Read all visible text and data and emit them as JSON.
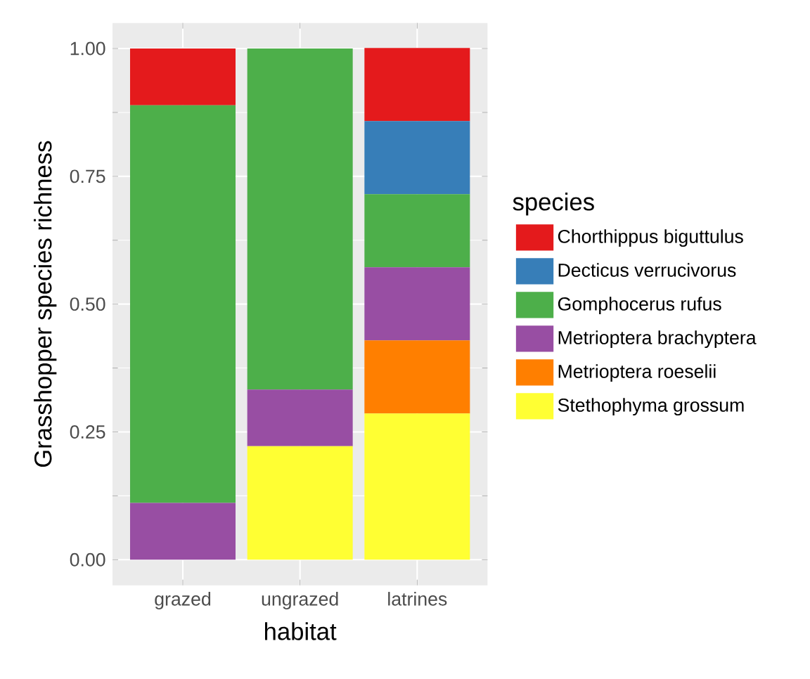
{
  "chart_data": {
    "type": "bar",
    "stacked": true,
    "xlabel": "habitat",
    "ylabel": "Grasshopper species richness",
    "legend_title": "species",
    "legend": "right",
    "grid": true,
    "categories": [
      "grazed",
      "ungrazed",
      "latrines"
    ],
    "ylim": [
      -0.05,
      1.05
    ],
    "yticks": [
      {
        "value": 0,
        "label": "0.00"
      },
      {
        "value": 0.25,
        "label": "0.25"
      },
      {
        "value": 0.5,
        "label": "0.50"
      },
      {
        "value": 0.75,
        "label": "0.75"
      },
      {
        "value": 1,
        "label": "1.00"
      }
    ],
    "series": [
      {
        "name": "Stethophyma grossum",
        "color": "#ffff33",
        "values": [
          null,
          0.222,
          0.286
        ]
      },
      {
        "name": "Metrioptera roeselii",
        "color": "#ff7f00",
        "values": [
          null,
          null,
          0.143
        ]
      },
      {
        "name": "Metrioptera brachyptera",
        "color": "#984ea3",
        "values": [
          0.111,
          0.111,
          0.143
        ]
      },
      {
        "name": "Gomphocerus rufus",
        "color": "#4daf4a",
        "values": [
          0.778,
          0.667,
          0.143
        ]
      },
      {
        "name": "Decticus verrucivorus",
        "color": "#377eb8",
        "values": [
          null,
          null,
          0.143
        ]
      },
      {
        "name": "Chorthippus biguttulus",
        "color": "#e41a1c",
        "values": [
          0.111,
          null,
          0.143
        ]
      }
    ]
  }
}
